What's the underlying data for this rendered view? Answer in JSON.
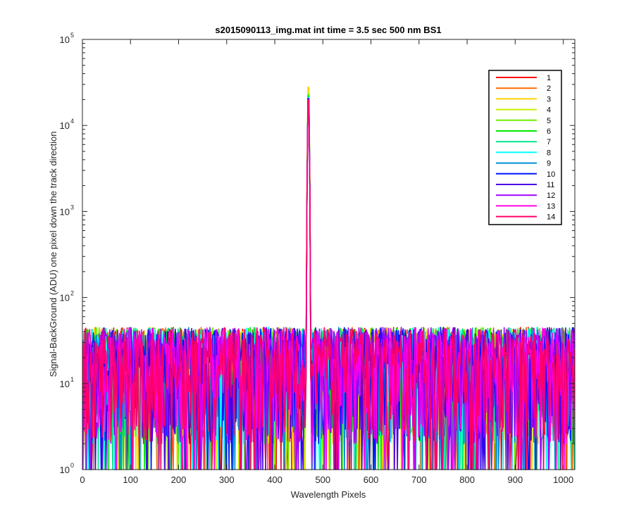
{
  "chart_data": {
    "type": "line",
    "title": "s2015090113_img.mat int time = 3.5 sec  500 nm BS1",
    "xlabel": "Wavelength Pixels",
    "ylabel": "Signal-BackGround (ADU) one pixel down the track direction",
    "xlim": [
      0,
      1024
    ],
    "ylim": [
      1,
      100000
    ],
    "yscale": "log",
    "xticks": [
      0,
      100,
      200,
      300,
      400,
      500,
      600,
      700,
      800,
      900,
      1000
    ],
    "yticks": [
      {
        "value": 1,
        "base": "10",
        "exp": "0"
      },
      {
        "value": 10,
        "base": "10",
        "exp": "1"
      },
      {
        "value": 100,
        "base": "10",
        "exp": "2"
      },
      {
        "value": 1000,
        "base": "10",
        "exp": "3"
      },
      {
        "value": 10000,
        "base": "10",
        "exp": "4"
      },
      {
        "value": 100000,
        "base": "10",
        "exp": "5"
      }
    ],
    "grid": false,
    "legend_position": "top-right",
    "peak": {
      "x": 470,
      "width": 6,
      "values_by_series": [
        30000,
        31000,
        38000,
        33000,
        31000,
        30000,
        29000,
        29000,
        28000,
        28000,
        27000,
        26000,
        27000,
        27000
      ]
    },
    "noise_range": [
      2,
      45
    ],
    "series": [
      {
        "name": "1",
        "color": "#ff0000"
      },
      {
        "name": "2",
        "color": "#ff6a00"
      },
      {
        "name": "3",
        "color": "#ffd500"
      },
      {
        "name": "4",
        "color": "#c8f000"
      },
      {
        "name": "5",
        "color": "#6ef000"
      },
      {
        "name": "6",
        "color": "#00e600"
      },
      {
        "name": "7",
        "color": "#00e68a"
      },
      {
        "name": "8",
        "color": "#00ffff"
      },
      {
        "name": "9",
        "color": "#008fd5"
      },
      {
        "name": "10",
        "color": "#0015ff"
      },
      {
        "name": "11",
        "color": "#4a00e6"
      },
      {
        "name": "12",
        "color": "#a000ff"
      },
      {
        "name": "13",
        "color": "#ff00e6"
      },
      {
        "name": "14",
        "color": "#ff0066"
      }
    ]
  }
}
